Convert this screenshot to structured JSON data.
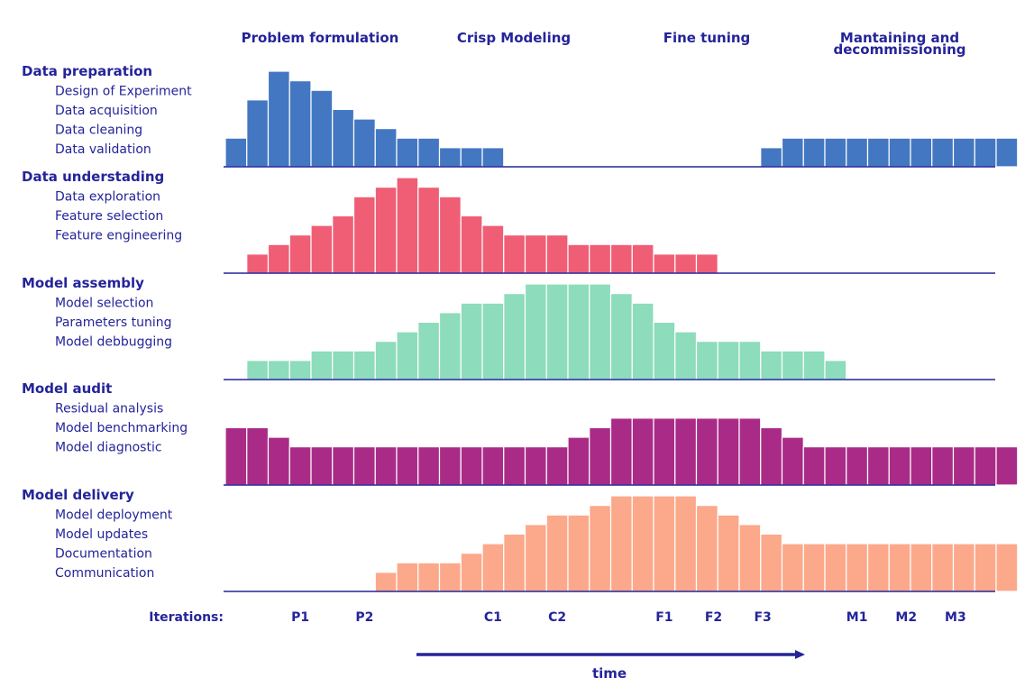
{
  "chart_data": {
    "type": "bar",
    "phases": [
      "Problem formulation",
      "Crisp Modeling",
      "Fine tuning",
      [
        "Mantaining and",
        "decommissioning"
      ]
    ],
    "sections": [
      {
        "title": "Data preparation",
        "items": [
          "Design of Experiment",
          "Data acquisition",
          "Data cleaning",
          "Data validation"
        ],
        "color": "#4477c2",
        "values": [
          1.5,
          3.5,
          5,
          4.5,
          4,
          3,
          2.5,
          2,
          1.5,
          1.5,
          1,
          1,
          1,
          0,
          0,
          0,
          0,
          0,
          0,
          0,
          0,
          0,
          0,
          0,
          0,
          1,
          1.5,
          1.5,
          1.5,
          1.5,
          1.5,
          1.5,
          1.5,
          1.5,
          1.5,
          1.5,
          1.5
        ]
      },
      {
        "title": "Data understading",
        "items": [
          "Data exploration",
          "Feature selection",
          "Feature engineering"
        ],
        "color": "#ef5e75",
        "values": [
          0,
          1,
          1.5,
          2,
          2.5,
          3,
          4,
          4.5,
          5,
          4.5,
          4,
          3,
          2.5,
          2,
          2,
          2,
          1.5,
          1.5,
          1.5,
          1.5,
          1,
          1,
          1,
          0,
          0,
          0,
          0,
          0,
          0,
          0,
          0,
          0,
          0,
          0,
          0,
          0,
          0
        ]
      },
      {
        "title": "Model assembly",
        "items": [
          "Model selection",
          "Parameters tuning",
          "Model debbugging"
        ],
        "color": "#8ddcbc",
        "values": [
          0,
          1,
          1,
          1,
          1.5,
          1.5,
          1.5,
          2,
          2.5,
          3,
          3.5,
          4,
          4,
          4.5,
          5,
          5,
          5,
          5,
          4.5,
          4,
          3,
          2.5,
          2,
          2,
          2,
          1.5,
          1.5,
          1.5,
          1,
          0,
          0,
          0,
          0,
          0,
          0,
          0,
          0
        ]
      },
      {
        "title": "Model audit",
        "items": [
          "Residual analysis",
          "Model benchmarking",
          "Model diagnostic"
        ],
        "color": "#a92b87",
        "values": [
          3,
          3,
          2.5,
          2,
          2,
          2,
          2,
          2,
          2,
          2,
          2,
          2,
          2,
          2,
          2,
          2,
          2.5,
          3,
          3.5,
          3.5,
          3.5,
          3.5,
          3.5,
          3.5,
          3.5,
          3,
          2.5,
          2,
          2,
          2,
          2,
          2,
          2,
          2,
          2,
          2,
          2
        ]
      },
      {
        "title": "Model delivery",
        "items": [
          "Model deployment",
          "Model updates",
          "Documentation",
          "Communication"
        ],
        "color": "#fba98a",
        "values": [
          0,
          0,
          0,
          0,
          0,
          0,
          0,
          1,
          1.5,
          1.5,
          1.5,
          2,
          2.5,
          3,
          3.5,
          4,
          4,
          4.5,
          5,
          5,
          5,
          5,
          4.5,
          4,
          3.5,
          3,
          2.5,
          2.5,
          2.5,
          2.5,
          2.5,
          2.5,
          2.5,
          2.5,
          2.5,
          2.5,
          2.5
        ]
      }
    ],
    "iterations_label": "Iterations:",
    "iterations": [
      {
        "label": "P1",
        "col": 3
      },
      {
        "label": "P2",
        "col": 6
      },
      {
        "label": "C1",
        "col": 12
      },
      {
        "label": "C2",
        "col": 15
      },
      {
        "label": "F1",
        "col": 20
      },
      {
        "label": "F2",
        "col": 22.3
      },
      {
        "label": "F3",
        "col": 24.6
      },
      {
        "label": "M1",
        "col": 29
      },
      {
        "label": "M2",
        "col": 31.3
      },
      {
        "label": "M3",
        "col": 33.6
      }
    ],
    "time_label": "time"
  },
  "colors": {
    "text": "#24249a",
    "axis": "#24249a"
  }
}
